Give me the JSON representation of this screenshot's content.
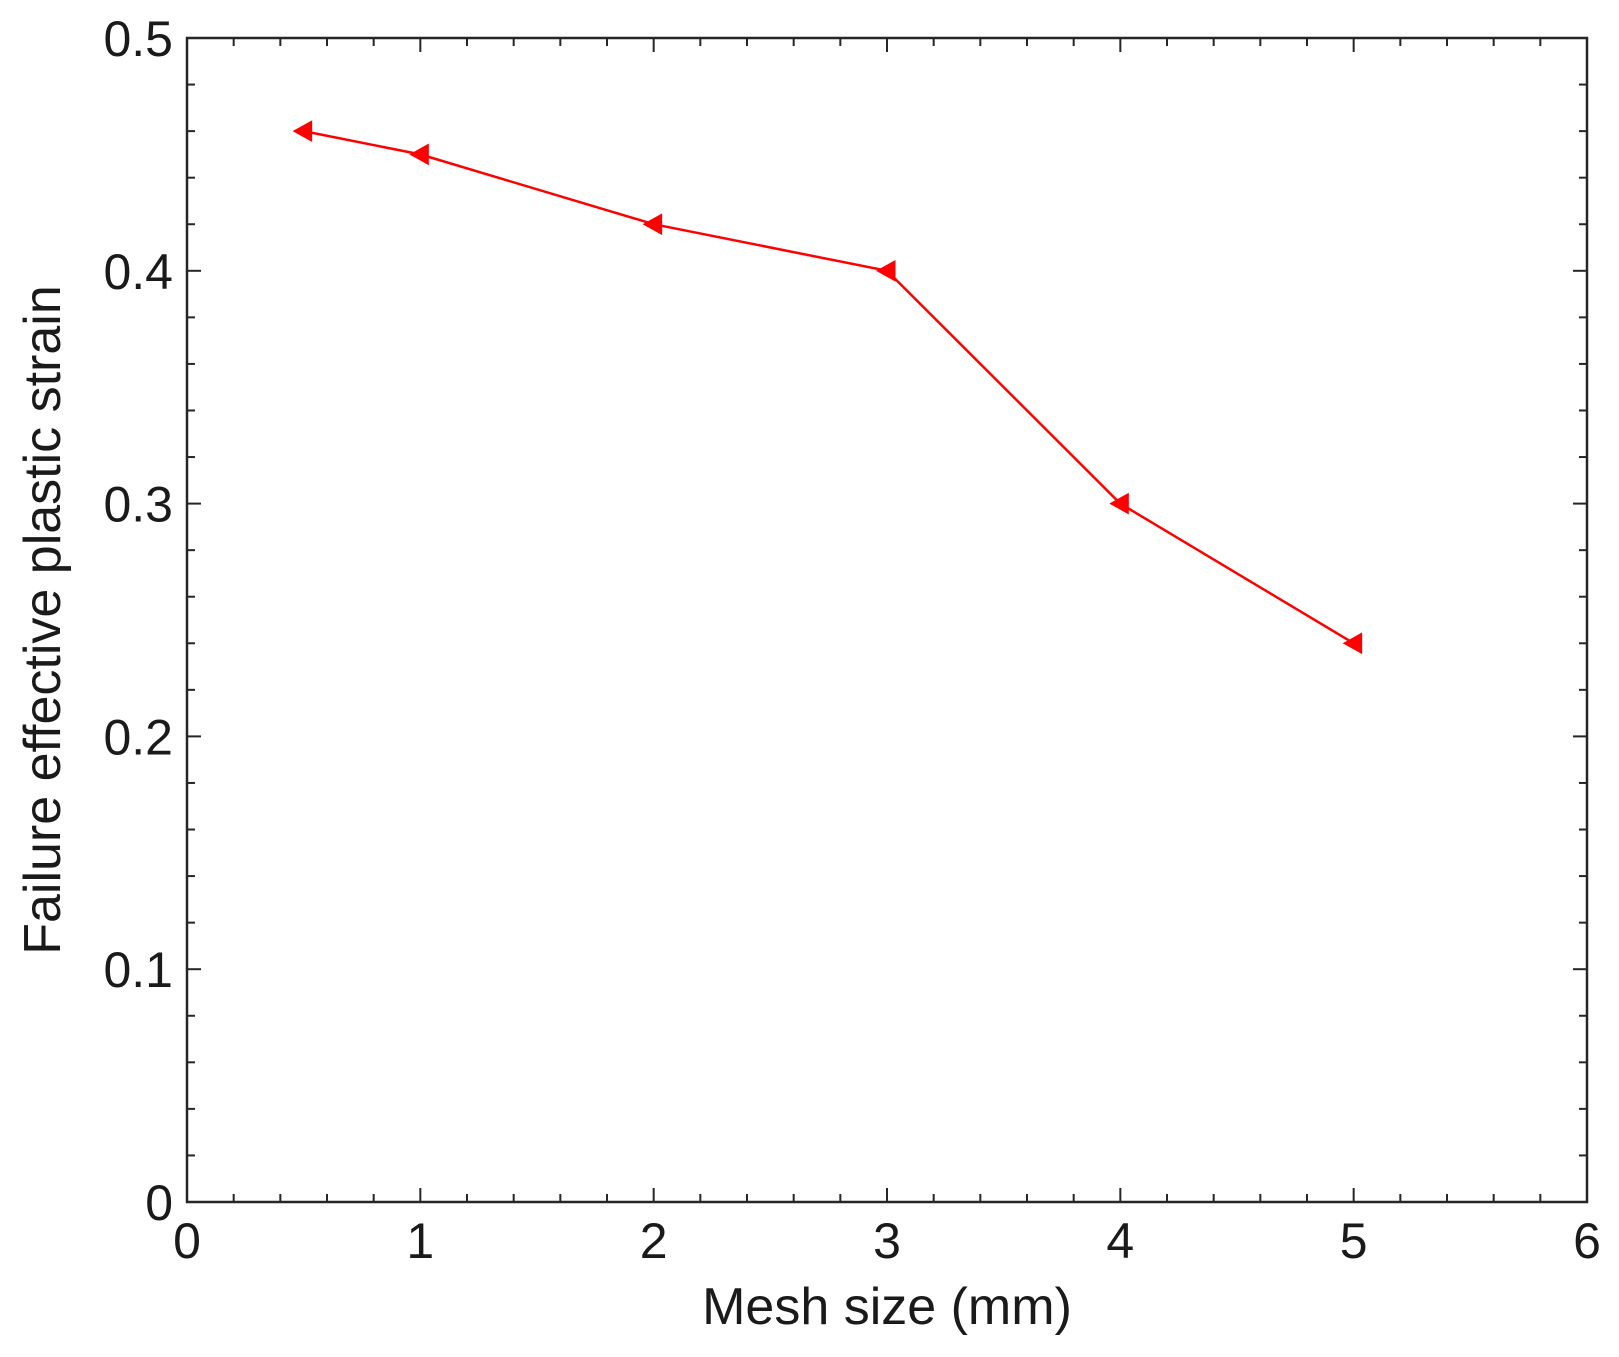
{
  "chart_data": {
    "type": "line",
    "title": "",
    "xlabel": "Mesh size (mm)",
    "ylabel": "Failure effective plastic strain",
    "xlim": [
      0,
      6
    ],
    "ylim": [
      0,
      0.5
    ],
    "xticks": [
      0,
      1,
      2,
      3,
      4,
      5,
      6
    ],
    "xtick_labels": [
      "0",
      "1",
      "2",
      "3",
      "4",
      "5",
      "6"
    ],
    "yticks": [
      0,
      0.1,
      0.2,
      0.3,
      0.4,
      0.5
    ],
    "ytick_labels": [
      "0",
      "0.1",
      "0.2",
      "0.3",
      "0.4",
      "0.5"
    ],
    "x_minor_step": 0.2,
    "y_minor_step": 0.02,
    "grid": false,
    "legend": "none",
    "series": [
      {
        "x": [
          0.5,
          1,
          2,
          3,
          4,
          5
        ],
        "y": [
          0.46,
          0.45,
          0.42,
          0.4,
          0.3,
          0.24
        ],
        "color": "#ff0000",
        "marker": "left-pointing-triangle"
      }
    ]
  }
}
